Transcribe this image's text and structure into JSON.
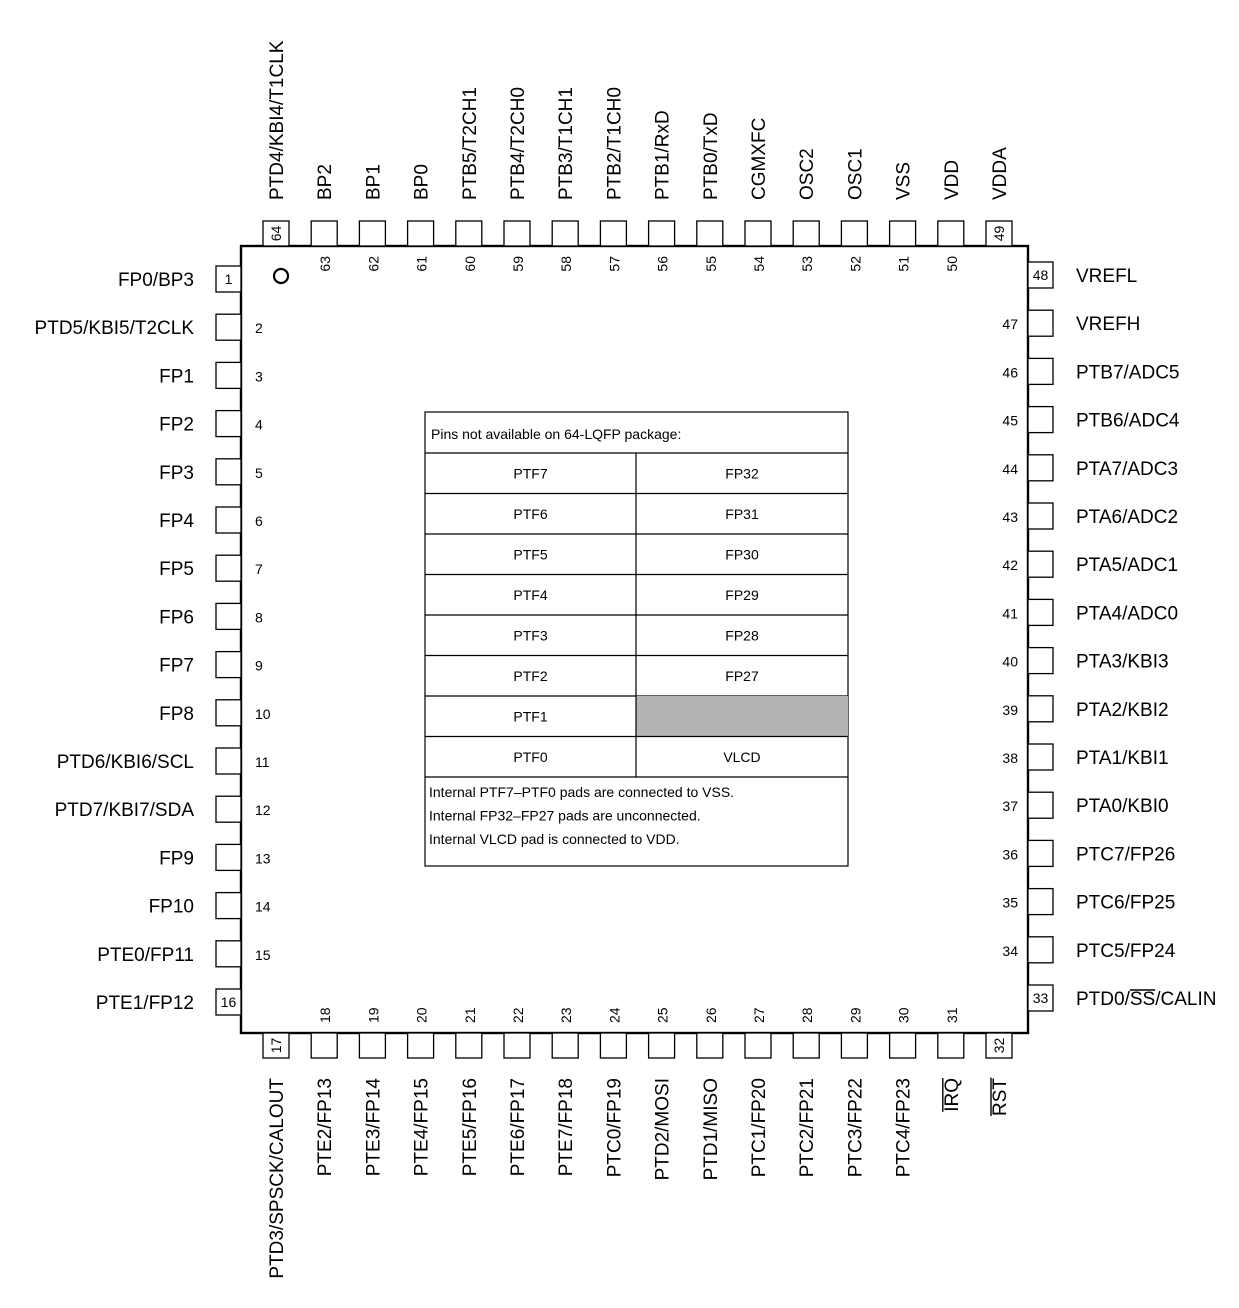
{
  "pins": {
    "left": [
      {
        "num": "1",
        "name": "FP0/BP3"
      },
      {
        "num": "2",
        "name": "PTD5/KBI5/T2CLK"
      },
      {
        "num": "3",
        "name": "FP1"
      },
      {
        "num": "4",
        "name": "FP2"
      },
      {
        "num": "5",
        "name": "FP3"
      },
      {
        "num": "6",
        "name": "FP4"
      },
      {
        "num": "7",
        "name": "FP5"
      },
      {
        "num": "8",
        "name": "FP6"
      },
      {
        "num": "9",
        "name": "FP7"
      },
      {
        "num": "10",
        "name": "FP8"
      },
      {
        "num": "11",
        "name": "PTD6/KBI6/SCL"
      },
      {
        "num": "12",
        "name": "PTD7/KBI7/SDA"
      },
      {
        "num": "13",
        "name": "FP9"
      },
      {
        "num": "14",
        "name": "FP10"
      },
      {
        "num": "15",
        "name": "PTE0/FP11"
      },
      {
        "num": "16",
        "name": "PTE1/FP12"
      }
    ],
    "bottom": [
      {
        "num": "17",
        "name": "PTD3/SPSCK/CALOUT"
      },
      {
        "num": "18",
        "name": "PTE2/FP13"
      },
      {
        "num": "19",
        "name": "PTE3/FP14"
      },
      {
        "num": "20",
        "name": "PTE4/FP15"
      },
      {
        "num": "21",
        "name": "PTE5/FP16"
      },
      {
        "num": "22",
        "name": "PTE6/FP17"
      },
      {
        "num": "23",
        "name": "PTE7/FP18"
      },
      {
        "num": "24",
        "name": "PTC0/FP19"
      },
      {
        "num": "25",
        "name": "PTD2/MOSI"
      },
      {
        "num": "26",
        "name": "PTD1/MISO"
      },
      {
        "num": "27",
        "name": "PTC1/FP20"
      },
      {
        "num": "28",
        "name": "PTC2/FP21"
      },
      {
        "num": "29",
        "name": "PTC3/FP22"
      },
      {
        "num": "30",
        "name": "PTC4/FP23"
      },
      {
        "num": "31",
        "name": "IRQ",
        "overline": "IRQ"
      },
      {
        "num": "32",
        "name": "RST",
        "overline": "RST"
      }
    ],
    "right": [
      {
        "num": "33",
        "pre": "PTD0/",
        "over": "SS",
        "post": "/CALIN"
      },
      {
        "num": "34",
        "name": "PTC5/FP24"
      },
      {
        "num": "35",
        "name": "PTC6/FP25"
      },
      {
        "num": "36",
        "name": "PTC7/FP26"
      },
      {
        "num": "37",
        "name": "PTA0/KBI0"
      },
      {
        "num": "38",
        "name": "PTA1/KBI1"
      },
      {
        "num": "39",
        "name": "PTA2/KBI2"
      },
      {
        "num": "40",
        "name": "PTA3/KBI3"
      },
      {
        "num": "41",
        "name": "PTA4/ADC0"
      },
      {
        "num": "42",
        "name": "PTA5/ADC1"
      },
      {
        "num": "43",
        "name": "PTA6/ADC2"
      },
      {
        "num": "44",
        "name": "PTA7/ADC3"
      },
      {
        "num": "45",
        "name": "PTB6/ADC4"
      },
      {
        "num": "46",
        "name": "PTB7/ADC5"
      },
      {
        "num": "47",
        "name": "VREFH"
      },
      {
        "num": "48",
        "name": "VREFL"
      }
    ],
    "top": [
      {
        "num": "64",
        "name": "PTD4/KBI4/T1CLK"
      },
      {
        "num": "63",
        "name": "BP2"
      },
      {
        "num": "62",
        "name": "BP1"
      },
      {
        "num": "61",
        "name": "BP0"
      },
      {
        "num": "60",
        "name": "PTB5/T2CH1"
      },
      {
        "num": "59",
        "name": "PTB4/T2CH0"
      },
      {
        "num": "58",
        "name": "PTB3/T1CH1"
      },
      {
        "num": "57",
        "name": "PTB2/T1CH0"
      },
      {
        "num": "56",
        "name": "PTB1/RxD"
      },
      {
        "num": "55",
        "name": "PTB0/TxD"
      },
      {
        "num": "54",
        "name": "CGMXFC"
      },
      {
        "num": "53",
        "name": "OSC2"
      },
      {
        "num": "52",
        "name": "OSC1"
      },
      {
        "num": "51",
        "name": "VSS"
      },
      {
        "num": "50",
        "name": "VDD"
      },
      {
        "num": "49",
        "name": "VDDA"
      }
    ]
  },
  "table": {
    "header": "Pins not available on 64-LQFP package:",
    "rows": [
      [
        "PTF7",
        "FP32"
      ],
      [
        "PTF6",
        "FP31"
      ],
      [
        "PTF5",
        "FP30"
      ],
      [
        "PTF4",
        "FP29"
      ],
      [
        "PTF3",
        "FP28"
      ],
      [
        "PTF2",
        "FP27"
      ],
      [
        "PTF1",
        ""
      ],
      [
        "PTF0",
        "VLCD"
      ]
    ],
    "notes": [
      "Internal PTF7–PTF0 pads are connected to VSS.",
      "Internal FP32–FP27 pads are unconnected.",
      "Internal VLCD pad is connected to VDD."
    ]
  },
  "colors": {
    "shaded_cell": "#b4b4b4"
  }
}
